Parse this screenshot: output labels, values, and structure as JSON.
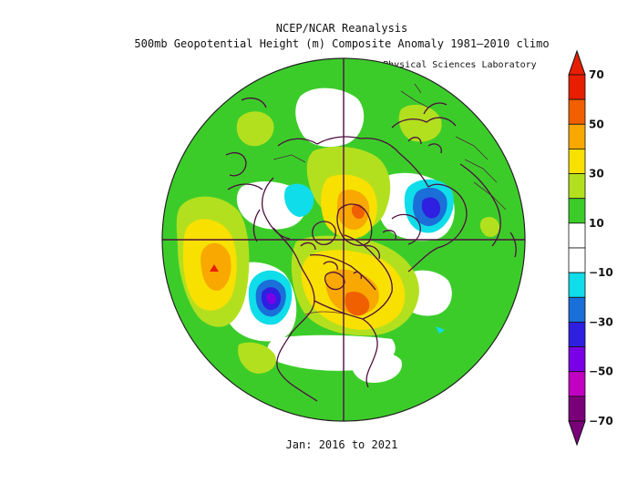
{
  "header": {
    "title": "NCEP/NCAR Reanalysis",
    "subtitle": "500mb Geopotential Height (m) Composite Anomaly 1981–2010 climo",
    "credit": "NOAA Physical Sciences Laboratory"
  },
  "footer": {
    "period": "Jan: 2016 to 2021"
  },
  "colorbar": {
    "labels": [
      "70",
      "50",
      "30",
      "10",
      "−10",
      "−30",
      "−50",
      "−70"
    ],
    "colors": [
      "#7a0079",
      "#c200c2",
      "#7a00e6",
      "#2f1fe1",
      "#1a6fd9",
      "#0fdde9",
      "#ffffff",
      "#ffffff",
      "#3ccc2a",
      "#b3e01e",
      "#f8e000",
      "#f8a800",
      "#f06000",
      "#e81e00"
    ]
  },
  "colors": {
    "ocean_base": "#3ccc2a",
    "coastline": "#4d0f3e",
    "frame": "#222222"
  }
}
